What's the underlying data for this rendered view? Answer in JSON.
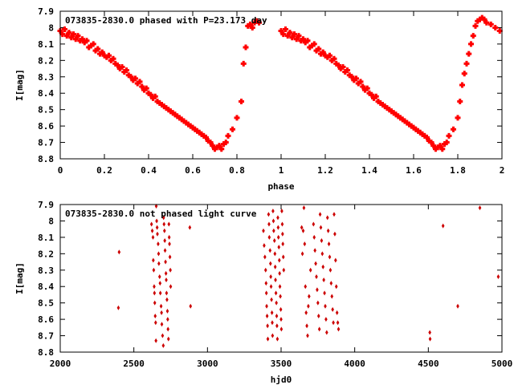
{
  "chart_data": [
    {
      "type": "scatter",
      "title": "073835-2830.0 phased with P=23.173 day",
      "xlabel": "phase",
      "ylabel": "I[mag]",
      "xlim": [
        0,
        2
      ],
      "ylim": [
        7.9,
        8.8
      ],
      "y_inverted": true,
      "xticks": [
        0,
        0.2,
        0.4,
        0.6,
        0.8,
        1,
        1.2,
        1.4,
        1.6,
        1.8,
        2
      ],
      "xtick_labels": [
        "0",
        "0.2",
        "0.4",
        "0.6",
        "0.8",
        "1",
        "1.2",
        "1.4",
        "1.6",
        "1.8",
        "2"
      ],
      "yticks": [
        7.9,
        8.0,
        8.1,
        8.2,
        8.3,
        8.4,
        8.5,
        8.6,
        8.7,
        8.8
      ],
      "ytick_labels": [
        "7.9",
        "8",
        "8.1",
        "8.2",
        "8.3",
        "8.4",
        "8.5",
        "8.6",
        "8.7",
        "8.8"
      ],
      "marker_color": "#ff0000",
      "marker": "plus",
      "points": [
        [
          0.0,
          8.02
        ],
        [
          0.01,
          8.04
        ],
        [
          0.02,
          8.01
        ],
        [
          0.03,
          8.05
        ],
        [
          0.04,
          8.03
        ],
        [
          0.05,
          8.06
        ],
        [
          0.06,
          8.04
        ],
        [
          0.07,
          8.07
        ],
        [
          0.08,
          8.05
        ],
        [
          0.09,
          8.08
        ],
        [
          0.1,
          8.07
        ],
        [
          0.11,
          8.09
        ],
        [
          0.12,
          8.08
        ],
        [
          0.13,
          8.12
        ],
        [
          0.14,
          8.11
        ],
        [
          0.15,
          8.1
        ],
        [
          0.16,
          8.14
        ],
        [
          0.17,
          8.13
        ],
        [
          0.18,
          8.16
        ],
        [
          0.19,
          8.15
        ],
        [
          0.2,
          8.17
        ],
        [
          0.21,
          8.18
        ],
        [
          0.22,
          8.17
        ],
        [
          0.23,
          8.2
        ],
        [
          0.24,
          8.19
        ],
        [
          0.25,
          8.22
        ],
        [
          0.26,
          8.23
        ],
        [
          0.27,
          8.25
        ],
        [
          0.28,
          8.24
        ],
        [
          0.29,
          8.27
        ],
        [
          0.3,
          8.26
        ],
        [
          0.31,
          8.29
        ],
        [
          0.32,
          8.3
        ],
        [
          0.33,
          8.32
        ],
        [
          0.34,
          8.31
        ],
        [
          0.35,
          8.34
        ],
        [
          0.36,
          8.33
        ],
        [
          0.37,
          8.36
        ],
        [
          0.38,
          8.38
        ],
        [
          0.39,
          8.37
        ],
        [
          0.4,
          8.4
        ],
        [
          0.41,
          8.41
        ],
        [
          0.42,
          8.43
        ],
        [
          0.43,
          8.42
        ],
        [
          0.44,
          8.45
        ],
        [
          0.45,
          8.46
        ],
        [
          0.46,
          8.47
        ],
        [
          0.47,
          8.48
        ],
        [
          0.48,
          8.49
        ],
        [
          0.49,
          8.5
        ],
        [
          0.5,
          8.51
        ],
        [
          0.51,
          8.52
        ],
        [
          0.52,
          8.53
        ],
        [
          0.53,
          8.54
        ],
        [
          0.54,
          8.55
        ],
        [
          0.55,
          8.56
        ],
        [
          0.56,
          8.57
        ],
        [
          0.57,
          8.58
        ],
        [
          0.58,
          8.59
        ],
        [
          0.59,
          8.6
        ],
        [
          0.6,
          8.61
        ],
        [
          0.61,
          8.62
        ],
        [
          0.62,
          8.63
        ],
        [
          0.63,
          8.64
        ],
        [
          0.64,
          8.65
        ],
        [
          0.65,
          8.66
        ],
        [
          0.66,
          8.67
        ],
        [
          0.67,
          8.69
        ],
        [
          0.68,
          8.7
        ],
        [
          0.69,
          8.72
        ],
        [
          0.7,
          8.74
        ],
        [
          0.71,
          8.73
        ],
        [
          0.72,
          8.72
        ],
        [
          0.73,
          8.74
        ],
        [
          0.74,
          8.71
        ],
        [
          0.75,
          8.7
        ],
        [
          0.76,
          8.66
        ],
        [
          0.78,
          8.62
        ],
        [
          0.8,
          8.55
        ],
        [
          0.82,
          8.45
        ],
        [
          0.83,
          8.22
        ],
        [
          0.84,
          8.12
        ],
        [
          0.85,
          7.99
        ],
        [
          0.86,
          7.98
        ],
        [
          0.87,
          8.0
        ],
        [
          0.88,
          7.97
        ],
        [
          0.89,
          7.96
        ],
        [
          0.9,
          7.97
        ],
        [
          1.0,
          8.02
        ],
        [
          1.01,
          8.04
        ],
        [
          1.02,
          8.01
        ],
        [
          1.03,
          8.05
        ],
        [
          1.04,
          8.03
        ],
        [
          1.05,
          8.06
        ],
        [
          1.06,
          8.04
        ],
        [
          1.07,
          8.07
        ],
        [
          1.08,
          8.05
        ],
        [
          1.09,
          8.08
        ],
        [
          1.1,
          8.07
        ],
        [
          1.11,
          8.09
        ],
        [
          1.12,
          8.08
        ],
        [
          1.13,
          8.12
        ],
        [
          1.14,
          8.11
        ],
        [
          1.15,
          8.1
        ],
        [
          1.16,
          8.14
        ],
        [
          1.17,
          8.13
        ],
        [
          1.18,
          8.16
        ],
        [
          1.19,
          8.15
        ],
        [
          1.2,
          8.17
        ],
        [
          1.21,
          8.18
        ],
        [
          1.22,
          8.17
        ],
        [
          1.23,
          8.2
        ],
        [
          1.24,
          8.19
        ],
        [
          1.25,
          8.22
        ],
        [
          1.26,
          8.23
        ],
        [
          1.27,
          8.25
        ],
        [
          1.28,
          8.24
        ],
        [
          1.29,
          8.27
        ],
        [
          1.3,
          8.26
        ],
        [
          1.31,
          8.29
        ],
        [
          1.32,
          8.3
        ],
        [
          1.33,
          8.32
        ],
        [
          1.34,
          8.31
        ],
        [
          1.35,
          8.34
        ],
        [
          1.36,
          8.33
        ],
        [
          1.37,
          8.36
        ],
        [
          1.38,
          8.38
        ],
        [
          1.39,
          8.37
        ],
        [
          1.4,
          8.4
        ],
        [
          1.41,
          8.41
        ],
        [
          1.42,
          8.43
        ],
        [
          1.43,
          8.42
        ],
        [
          1.44,
          8.45
        ],
        [
          1.45,
          8.46
        ],
        [
          1.46,
          8.47
        ],
        [
          1.47,
          8.48
        ],
        [
          1.48,
          8.49
        ],
        [
          1.49,
          8.5
        ],
        [
          1.5,
          8.51
        ],
        [
          1.51,
          8.52
        ],
        [
          1.52,
          8.53
        ],
        [
          1.53,
          8.54
        ],
        [
          1.54,
          8.55
        ],
        [
          1.55,
          8.56
        ],
        [
          1.56,
          8.57
        ],
        [
          1.57,
          8.58
        ],
        [
          1.58,
          8.59
        ],
        [
          1.59,
          8.6
        ],
        [
          1.6,
          8.61
        ],
        [
          1.61,
          8.62
        ],
        [
          1.62,
          8.63
        ],
        [
          1.63,
          8.64
        ],
        [
          1.64,
          8.65
        ],
        [
          1.65,
          8.66
        ],
        [
          1.66,
          8.67
        ],
        [
          1.67,
          8.69
        ],
        [
          1.68,
          8.7
        ],
        [
          1.69,
          8.72
        ],
        [
          1.7,
          8.74
        ],
        [
          1.71,
          8.73
        ],
        [
          1.72,
          8.72
        ],
        [
          1.73,
          8.74
        ],
        [
          1.74,
          8.71
        ],
        [
          1.75,
          8.7
        ],
        [
          1.76,
          8.66
        ],
        [
          1.78,
          8.62
        ],
        [
          1.8,
          8.55
        ],
        [
          1.81,
          8.45
        ],
        [
          1.82,
          8.35
        ],
        [
          1.83,
          8.28
        ],
        [
          1.84,
          8.22
        ],
        [
          1.85,
          8.16
        ],
        [
          1.86,
          8.1
        ],
        [
          1.87,
          8.05
        ],
        [
          1.88,
          7.99
        ],
        [
          1.89,
          7.96
        ],
        [
          1.9,
          7.95
        ],
        [
          1.91,
          7.94
        ],
        [
          1.92,
          7.95
        ],
        [
          1.93,
          7.97
        ],
        [
          1.95,
          7.98
        ],
        [
          1.97,
          8.0
        ],
        [
          1.99,
          8.02
        ]
      ]
    },
    {
      "type": "scatter",
      "title": "073835-2830.0 not phased light curve",
      "xlabel": "hjd0",
      "ylabel": "I[mag]",
      "xlim": [
        2000,
        5000
      ],
      "ylim": [
        7.9,
        8.8
      ],
      "y_inverted": true,
      "xticks": [
        2000,
        2500,
        3000,
        3500,
        4000,
        4500,
        5000
      ],
      "xtick_labels": [
        "2000",
        "2500",
        "3000",
        "3500",
        "4000",
        "4500",
        "5000"
      ],
      "yticks": [
        7.9,
        8.0,
        8.1,
        8.2,
        8.3,
        8.4,
        8.5,
        8.6,
        8.7,
        8.8
      ],
      "ytick_labels": [
        "7.9",
        "8",
        "8.1",
        "8.2",
        "8.3",
        "8.4",
        "8.5",
        "8.6",
        "8.7",
        "8.8"
      ],
      "marker_color": "#cc0000",
      "marker": "diamond",
      "points": [
        [
          2395,
          8.53
        ],
        [
          2400,
          8.19
        ],
        [
          2620,
          8.02
        ],
        [
          2625,
          8.06
        ],
        [
          2630,
          8.1
        ],
        [
          2632,
          8.24
        ],
        [
          2635,
          8.3
        ],
        [
          2638,
          8.4
        ],
        [
          2640,
          8.44
        ],
        [
          2642,
          8.5
        ],
        [
          2645,
          8.58
        ],
        [
          2648,
          8.62
        ],
        [
          2650,
          8.73
        ],
        [
          2652,
          7.91
        ],
        [
          2655,
          8.0
        ],
        [
          2658,
          8.04
        ],
        [
          2660,
          8.08
        ],
        [
          2665,
          8.14
        ],
        [
          2668,
          8.2
        ],
        [
          2670,
          8.26
        ],
        [
          2675,
          8.34
        ],
        [
          2678,
          8.38
        ],
        [
          2680,
          8.44
        ],
        [
          2685,
          8.52
        ],
        [
          2688,
          8.56
        ],
        [
          2690,
          8.63
        ],
        [
          2695,
          8.7
        ],
        [
          2700,
          8.76
        ],
        [
          2702,
          7.98
        ],
        [
          2705,
          8.02
        ],
        [
          2708,
          8.06
        ],
        [
          2710,
          8.12
        ],
        [
          2712,
          8.18
        ],
        [
          2715,
          8.25
        ],
        [
          2718,
          8.32
        ],
        [
          2720,
          8.36
        ],
        [
          2722,
          8.44
        ],
        [
          2725,
          8.48
        ],
        [
          2728,
          8.55
        ],
        [
          2730,
          8.6
        ],
        [
          2732,
          8.66
        ],
        [
          2735,
          8.72
        ],
        [
          2738,
          8.02
        ],
        [
          2740,
          8.1
        ],
        [
          2742,
          8.14
        ],
        [
          2745,
          8.22
        ],
        [
          2748,
          8.3
        ],
        [
          2750,
          8.4
        ],
        [
          2880,
          8.04
        ],
        [
          2885,
          8.52
        ],
        [
          3380,
          8.06
        ],
        [
          3385,
          8.15
        ],
        [
          3390,
          8.22
        ],
        [
          3395,
          8.3
        ],
        [
          3398,
          8.38
        ],
        [
          3400,
          8.44
        ],
        [
          3402,
          8.52
        ],
        [
          3405,
          8.58
        ],
        [
          3408,
          8.64
        ],
        [
          3410,
          8.72
        ],
        [
          3415,
          7.96
        ],
        [
          3418,
          8.02
        ],
        [
          3420,
          8.1
        ],
        [
          3425,
          8.18
        ],
        [
          3428,
          8.26
        ],
        [
          3430,
          8.34
        ],
        [
          3432,
          8.4
        ],
        [
          3435,
          8.48
        ],
        [
          3438,
          8.56
        ],
        [
          3440,
          8.62
        ],
        [
          3442,
          8.7
        ],
        [
          3445,
          7.94
        ],
        [
          3448,
          8.0
        ],
        [
          3450,
          8.06
        ],
        [
          3455,
          8.12
        ],
        [
          3458,
          8.2
        ],
        [
          3460,
          8.28
        ],
        [
          3462,
          8.36
        ],
        [
          3465,
          8.44
        ],
        [
          3468,
          8.5
        ],
        [
          3470,
          8.58
        ],
        [
          3472,
          8.64
        ],
        [
          3475,
          8.72
        ],
        [
          3478,
          7.98
        ],
        [
          3480,
          8.04
        ],
        [
          3482,
          8.1
        ],
        [
          3485,
          8.16
        ],
        [
          3488,
          8.24
        ],
        [
          3490,
          8.32
        ],
        [
          3492,
          8.4
        ],
        [
          3495,
          8.46
        ],
        [
          3498,
          8.54
        ],
        [
          3500,
          8.6
        ],
        [
          3502,
          8.66
        ],
        [
          3505,
          7.94
        ],
        [
          3508,
          8.02
        ],
        [
          3510,
          8.08
        ],
        [
          3512,
          8.14
        ],
        [
          3515,
          8.22
        ],
        [
          3518,
          8.3
        ],
        [
          3640,
          8.04
        ],
        [
          3645,
          8.2
        ],
        [
          3650,
          8.06
        ],
        [
          3655,
          7.92
        ],
        [
          3660,
          8.14
        ],
        [
          3665,
          8.4
        ],
        [
          3670,
          8.56
        ],
        [
          3675,
          8.64
        ],
        [
          3680,
          8.7
        ],
        [
          3685,
          8.52
        ],
        [
          3690,
          8.46
        ],
        [
          3700,
          8.3
        ],
        [
          3720,
          8.02
        ],
        [
          3725,
          8.1
        ],
        [
          3730,
          8.18
        ],
        [
          3735,
          8.26
        ],
        [
          3740,
          8.34
        ],
        [
          3745,
          8.42
        ],
        [
          3750,
          8.5
        ],
        [
          3755,
          8.58
        ],
        [
          3760,
          8.66
        ],
        [
          3765,
          7.96
        ],
        [
          3770,
          8.04
        ],
        [
          3775,
          8.12
        ],
        [
          3780,
          8.2
        ],
        [
          3785,
          8.28
        ],
        [
          3790,
          8.36
        ],
        [
          3795,
          8.44
        ],
        [
          3800,
          8.52
        ],
        [
          3805,
          8.6
        ],
        [
          3810,
          8.68
        ],
        [
          3815,
          7.98
        ],
        [
          3820,
          8.06
        ],
        [
          3825,
          8.14
        ],
        [
          3830,
          8.22
        ],
        [
          3835,
          8.3
        ],
        [
          3840,
          8.38
        ],
        [
          3845,
          8.46
        ],
        [
          3850,
          8.54
        ],
        [
          3855,
          8.62
        ],
        [
          3860,
          7.96
        ],
        [
          3865,
          8.08
        ],
        [
          3870,
          8.24
        ],
        [
          3875,
          8.4
        ],
        [
          3880,
          8.56
        ],
        [
          3885,
          8.62
        ],
        [
          3890,
          8.66
        ],
        [
          4510,
          8.68
        ],
        [
          4512,
          8.72
        ],
        [
          4600,
          8.03
        ],
        [
          4700,
          8.52
        ],
        [
          4850,
          7.92
        ],
        [
          4975,
          8.34
        ]
      ]
    }
  ]
}
